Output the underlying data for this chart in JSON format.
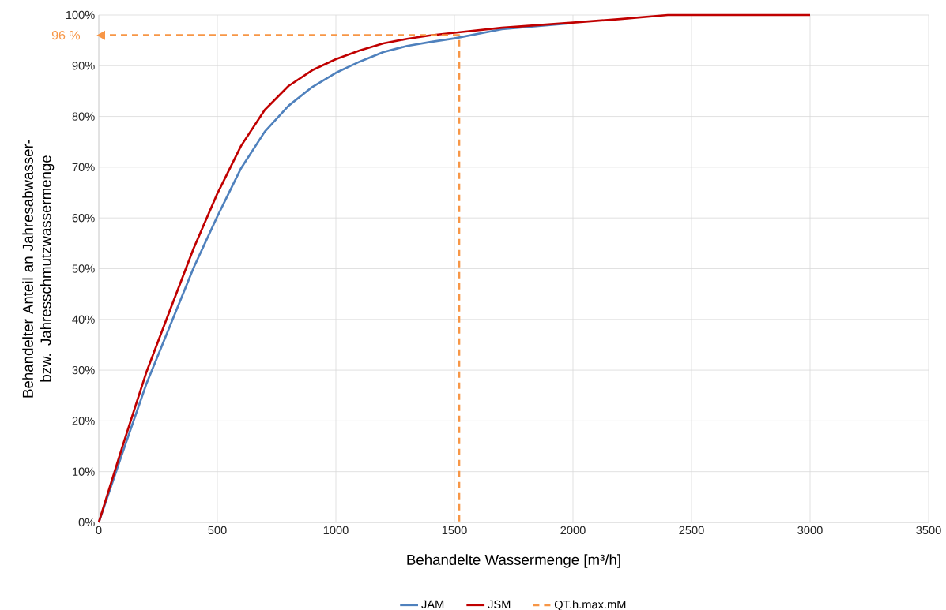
{
  "chart_data": {
    "type": "line",
    "xlabel": "Behandelte Wassermenge [m³/h]",
    "ylabel": "Behandelter Anteil an Jahresabwasser- bzw. Jahresschmutzwassermenge",
    "xlim": [
      0,
      3500
    ],
    "xticks": [
      0,
      500,
      1000,
      1500,
      2000,
      2500,
      3000,
      3500
    ],
    "ylim": [
      0,
      100
    ],
    "yticks": [
      {
        "value": 0,
        "label": "0%"
      },
      {
        "value": 10,
        "label": "10%"
      },
      {
        "value": 20,
        "label": "20%"
      },
      {
        "value": 30,
        "label": "30%"
      },
      {
        "value": 40,
        "label": "40%"
      },
      {
        "value": 50,
        "label": "50%"
      },
      {
        "value": 60,
        "label": "60%"
      },
      {
        "value": 70,
        "label": "70%"
      },
      {
        "value": 80,
        "label": "80%"
      },
      {
        "value": 90,
        "label": "90%"
      },
      {
        "value": 100,
        "label": "100%"
      }
    ],
    "grid": true,
    "legend": "bottom",
    "marker": "none",
    "series": [
      {
        "name": "JAM",
        "color": "#4f81bd",
        "x": [
          0,
          100,
          200,
          300,
          400,
          500,
          600,
          700,
          800,
          900,
          1000,
          1100,
          1200,
          1300,
          1400,
          1500,
          1700,
          2000
        ],
        "values": [
          0,
          13.7,
          27.2,
          38.7,
          50.2,
          60.3,
          69.8,
          77,
          82.1,
          85.8,
          88.6,
          90.8,
          92.7,
          93.9,
          94.7,
          95.4,
          97.2,
          98.4
        ]
      },
      {
        "name": "JSM",
        "color": "#c00000",
        "x": [
          0,
          100,
          200,
          300,
          400,
          500,
          600,
          700,
          800,
          900,
          1000,
          1100,
          1200,
          1300,
          1400,
          1500,
          1700,
          2000,
          2200,
          2400,
          3000
        ],
        "values": [
          0,
          15,
          29.5,
          41.8,
          54,
          64.8,
          74.2,
          81.3,
          86,
          89.1,
          91.3,
          93,
          94.4,
          95.3,
          96,
          96.5,
          97.5,
          98.5,
          99.2,
          100,
          100
        ]
      },
      {
        "name": "QT.h.max.mM",
        "color": "#f79646",
        "line_style": "dashed",
        "x": [
          0,
          1520,
          1520
        ],
        "values": [
          96,
          96,
          0
        ]
      }
    ],
    "annotations": [
      {
        "text": "96 %",
        "x": 0,
        "y": 96
      }
    ]
  }
}
